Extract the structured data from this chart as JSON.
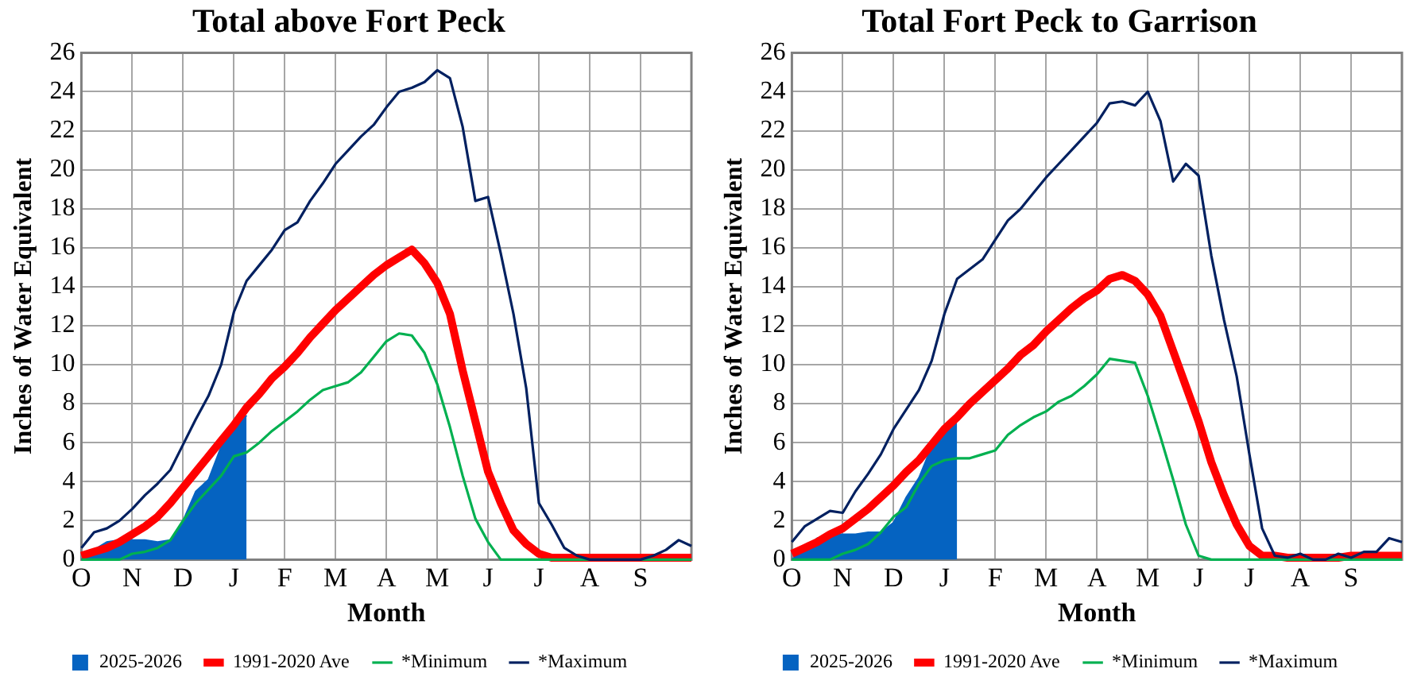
{
  "chart_data": [
    {
      "type": "line",
      "title": "Total above Fort Peck",
      "xlabel": "Month",
      "ylabel": "Inches of Water Equivalent",
      "categories": [
        "O",
        null,
        null,
        null,
        "N",
        null,
        null,
        null,
        "D",
        null,
        null,
        null,
        "J",
        null,
        null,
        null,
        "F",
        null,
        null,
        null,
        "M",
        null,
        null,
        null,
        "A",
        null,
        null,
        null,
        "M",
        null,
        null,
        null,
        "J",
        null,
        null,
        null,
        "J",
        null,
        null,
        null,
        "A",
        null,
        null,
        null,
        "S",
        null,
        null,
        null,
        null
      ],
      "ylim": [
        0,
        26
      ],
      "yticks": [
        0,
        2,
        4,
        6,
        8,
        10,
        12,
        14,
        16,
        18,
        20,
        22,
        24,
        26
      ],
      "grid": true,
      "legend": "bottom",
      "marker": "none",
      "series": [
        {
          "name": "2025-2026",
          "type": "area",
          "color": "#0563c1",
          "values": [
            0,
            0.5,
            0.9,
            1,
            1,
            1,
            0.9,
            1,
            2,
            3.5,
            4.1,
            5.8,
            6.6,
            7.4,
            null,
            null,
            null,
            null,
            null,
            null,
            null,
            null,
            null,
            null,
            null,
            null,
            null,
            null,
            null,
            null,
            null,
            null,
            null,
            null,
            null,
            null,
            null,
            null,
            null,
            null,
            null,
            null,
            null,
            null,
            null,
            null,
            null,
            null,
            null
          ]
        },
        {
          "name": "1991-2020 Ave",
          "color": "#ff0000",
          "values": [
            0.2,
            0.4,
            0.6,
            0.9,
            1.3,
            1.7,
            2.2,
            2.9,
            3.7,
            4.5,
            5.3,
            6.1,
            6.9,
            7.8,
            8.5,
            9.3,
            9.9,
            10.6,
            11.4,
            12.1,
            12.8,
            13.4,
            14,
            14.6,
            15.1,
            15.5,
            15.9,
            15.2,
            14.2,
            12.6,
            9.7,
            7.1,
            4.5,
            2.9,
            1.5,
            0.8,
            0.3,
            0.1,
            0.1,
            0.1,
            0.1,
            0.1,
            0.1,
            0.1,
            0.1,
            0.1,
            0.1,
            0.1,
            0.1
          ]
        },
        {
          "name": "*Minimum",
          "color": "#00b050",
          "values": [
            0,
            0,
            0,
            0,
            0.3,
            0.4,
            0.6,
            1,
            2,
            2.9,
            3.6,
            4.3,
            5.3,
            5.5,
            6,
            6.6,
            7.1,
            7.6,
            8.2,
            8.7,
            8.9,
            9.1,
            9.6,
            10.4,
            11.2,
            11.6,
            11.5,
            10.6,
            9,
            6.8,
            4.3,
            2.1,
            0.9,
            0,
            0,
            0,
            0,
            0,
            0,
            0,
            0,
            0,
            0,
            0,
            0,
            0,
            0,
            0,
            0
          ]
        },
        {
          "name": "*Maximum",
          "color": "#002060",
          "values": [
            0.6,
            1.4,
            1.6,
            2,
            2.6,
            3.3,
            3.9,
            4.6,
            5.9,
            7.2,
            8.4,
            10,
            12.7,
            14.3,
            15.1,
            15.9,
            16.9,
            17.3,
            18.4,
            19.3,
            20.3,
            21,
            21.7,
            22.3,
            23.2,
            24,
            24.2,
            24.5,
            25.1,
            24.7,
            22.2,
            18.4,
            18.6,
            15.7,
            12.6,
            8.8,
            2.9,
            1.8,
            0.6,
            0.2,
            0,
            0,
            0,
            0,
            0,
            0.2,
            0.5,
            1,
            0.7
          ]
        }
      ]
    },
    {
      "type": "line",
      "title": "Total Fort Peck to Garrison",
      "xlabel": "Month",
      "ylabel": "Inches of Water Equivalent",
      "categories": [
        "O",
        null,
        null,
        null,
        "N",
        null,
        null,
        null,
        "D",
        null,
        null,
        null,
        "J",
        null,
        null,
        null,
        "F",
        null,
        null,
        null,
        "M",
        null,
        null,
        null,
        "A",
        null,
        null,
        null,
        "M",
        null,
        null,
        null,
        "J",
        null,
        null,
        null,
        "J",
        null,
        null,
        null,
        "A",
        null,
        null,
        null,
        "S",
        null,
        null,
        null,
        null
      ],
      "ylim": [
        0,
        26
      ],
      "yticks": [
        0,
        2,
        4,
        6,
        8,
        10,
        12,
        14,
        16,
        18,
        20,
        22,
        24,
        26
      ],
      "grid": true,
      "legend": "bottom",
      "marker": "none",
      "series": [
        {
          "name": "2025-2026",
          "type": "area",
          "color": "#0563c1",
          "values": [
            0,
            0.6,
            1.1,
            1.3,
            1.3,
            1.3,
            1.4,
            1.4,
            1.9,
            3.2,
            4.2,
            5.8,
            6.8,
            7.3,
            null,
            null,
            null,
            null,
            null,
            null,
            null,
            null,
            null,
            null,
            null,
            null,
            null,
            null,
            null,
            null,
            null,
            null,
            null,
            null,
            null,
            null,
            null,
            null,
            null,
            null,
            null,
            null,
            null,
            null,
            null,
            null,
            null,
            null,
            null
          ]
        },
        {
          "name": "1991-2020 Ave",
          "color": "#ff0000",
          "values": [
            0.3,
            0.6,
            0.9,
            1.3,
            1.6,
            2.1,
            2.6,
            3.2,
            3.8,
            4.5,
            5.1,
            5.9,
            6.7,
            7.3,
            8,
            8.6,
            9.2,
            9.8,
            10.5,
            11,
            11.7,
            12.3,
            12.9,
            13.4,
            13.8,
            14.4,
            14.6,
            14.3,
            13.6,
            12.5,
            10.7,
            8.9,
            7.1,
            5,
            3.3,
            1.8,
            0.7,
            0.2,
            0.2,
            0.1,
            0.1,
            0.1,
            0.1,
            0.1,
            0.2,
            0.2,
            0.2,
            0.2,
            0.2
          ]
        },
        {
          "name": "*Minimum",
          "color": "#00b050",
          "values": [
            0,
            0,
            0,
            0,
            0.3,
            0.5,
            0.8,
            1.4,
            2.2,
            2.7,
            3.9,
            4.8,
            5.1,
            5.2,
            5.2,
            5.4,
            5.6,
            6.4,
            6.9,
            7.3,
            7.6,
            8.1,
            8.4,
            8.9,
            9.5,
            10.3,
            10.2,
            10.1,
            8.4,
            6.3,
            4.1,
            1.8,
            0.2,
            0,
            0,
            0,
            0,
            0,
            0,
            0,
            0,
            0,
            0,
            0,
            0,
            0,
            0,
            0,
            0
          ]
        },
        {
          "name": "*Maximum",
          "color": "#002060",
          "values": [
            0.9,
            1.7,
            2.1,
            2.5,
            2.4,
            3.5,
            4.4,
            5.4,
            6.7,
            7.7,
            8.7,
            10.2,
            12.6,
            14.4,
            14.9,
            15.4,
            16.4,
            17.4,
            18,
            18.8,
            19.6,
            20.3,
            21,
            21.7,
            22.4,
            23.4,
            23.5,
            23.3,
            24,
            22.5,
            19.4,
            20.3,
            19.7,
            15.6,
            12.3,
            9.4,
            5.4,
            1.6,
            0.2,
            0.1,
            0.3,
            0,
            0,
            0.3,
            0.1,
            0.4,
            0.4,
            1.1,
            0.9
          ]
        }
      ]
    }
  ]
}
